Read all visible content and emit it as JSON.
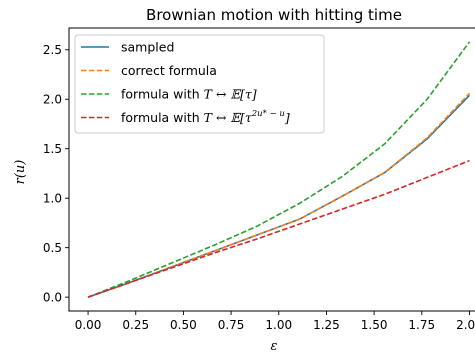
{
  "chart_data": {
    "type": "line",
    "title": "Brownian motion with hitting time",
    "xlabel": "ε",
    "ylabel": "r(u)",
    "xlim": [
      -0.1,
      2.05
    ],
    "ylim": [
      -0.14,
      2.72
    ],
    "xticks": [
      0.0,
      0.25,
      0.5,
      0.75,
      1.0,
      1.25,
      1.5,
      1.75,
      2.0
    ],
    "xtick_labels": [
      "0.00",
      "0.25",
      "0.50",
      "0.75",
      "1.00",
      "1.25",
      "1.50",
      "1.75",
      "2.00"
    ],
    "yticks": [
      0.0,
      0.5,
      1.0,
      1.5,
      2.0,
      2.5
    ],
    "ytick_labels": [
      "0.0",
      "0.5",
      "1.0",
      "1.5",
      "2.0",
      "2.5"
    ],
    "grid": false,
    "legend_position": "top-left",
    "x": [
      0.0,
      0.222,
      0.444,
      0.667,
      0.889,
      1.111,
      1.333,
      1.556,
      1.778,
      2.0
    ],
    "series": [
      {
        "name": "sampled",
        "style": "solid",
        "color": "#1f77b4",
        "values": [
          0.0,
          0.15,
          0.31,
          0.47,
          0.63,
          0.79,
          1.02,
          1.26,
          1.6,
          2.04
        ]
      },
      {
        "name": "correct formula",
        "style": "dashed",
        "color": "#ff7f0e",
        "values": [
          0.0,
          0.15,
          0.31,
          0.47,
          0.63,
          0.79,
          1.02,
          1.26,
          1.61,
          2.06
        ]
      },
      {
        "name": "formula with T ↔ 𝔼[τ]",
        "legend_parts": {
          "prefix": "formula with ",
          "math": "T ↔ 𝔼[τ]",
          "sup": ""
        },
        "style": "dashed",
        "color": "#2ca02c",
        "values": [
          0.0,
          0.17,
          0.35,
          0.53,
          0.72,
          0.95,
          1.22,
          1.55,
          2.0,
          2.58
        ]
      },
      {
        "name": "formula with T ↔ 𝔼[τ^(2u*−u)]",
        "legend_parts": {
          "prefix": "formula with ",
          "math": "T ↔ 𝔼[τ",
          "sup": "2u* − u",
          "suffix": "]"
        },
        "style": "dashed",
        "color": "#d62728",
        "values": [
          0.0,
          0.15,
          0.3,
          0.45,
          0.59,
          0.74,
          0.89,
          1.04,
          1.21,
          1.38
        ]
      }
    ]
  }
}
